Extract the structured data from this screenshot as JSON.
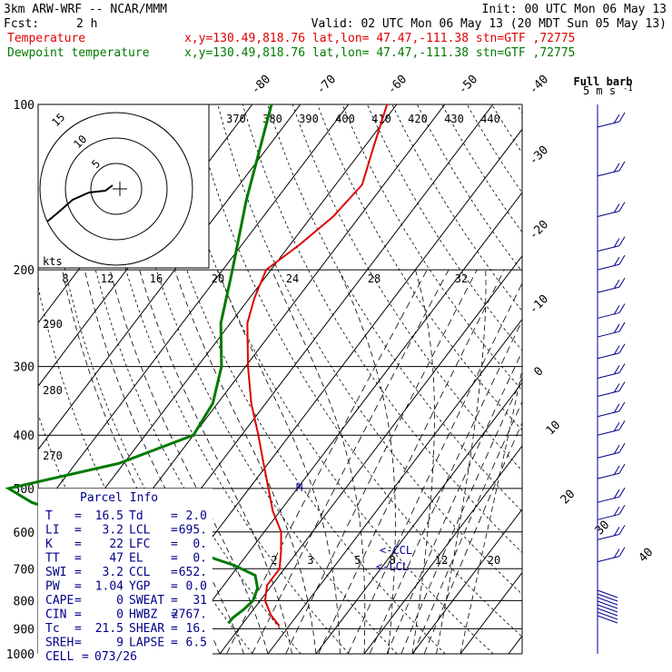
{
  "header": {
    "model": "3km ARW-WRF -- NCAR/MMM",
    "init": "Init: 00 UTC Mon 06 May 13",
    "fcst_label": "Fcst:",
    "fcst_value": "2 h",
    "valid": "Valid: 02 UTC Mon 06 May 13 (20 MDT Sun 05 May 13)",
    "temp_label": "Temperature",
    "temp_info": "x,y=130.49,818.76   lat,lon= 47.47,-111.38   stn=GTF ,72775",
    "dew_label": "Dewpoint temperature",
    "dew_info": "x,y=130.49,818.76   lat,lon= 47.47,-111.38   stn=GTF ,72775"
  },
  "colors": {
    "temperature": "#e00000",
    "dewpoint": "#007a00",
    "wind": "#00008b",
    "grid": "#000000"
  },
  "chart_data": {
    "type": "line",
    "pressure_levels": [
      "100",
      "200",
      "300",
      "400",
      "500",
      "600",
      "700",
      "800",
      "900",
      "1000"
    ],
    "p_ticks": [
      100,
      200,
      300,
      400,
      500,
      600,
      700,
      800,
      900,
      1000
    ],
    "isotherm_labels": [
      "-80",
      "-70",
      "-60",
      "-50",
      "-40",
      "-30",
      "-20",
      "-10",
      "0",
      "10",
      "20",
      "30",
      "40"
    ],
    "theta_labels": [
      "370",
      "380",
      "390",
      "400",
      "410",
      "420",
      "430",
      "440"
    ],
    "lower_theta_labels": [
      "290",
      "280",
      "270"
    ],
    "mixing_ratio_labels": [
      "8",
      "12",
      "16",
      "20",
      "24",
      "28",
      "32"
    ],
    "mixing_ratio_values": [
      8,
      12,
      16,
      20,
      24,
      28,
      32
    ],
    "low_mixing_labels": [
      "2",
      "3",
      "5",
      "8",
      "12",
      "20"
    ],
    "low_mixing_values": [
      2,
      3,
      5,
      8,
      12,
      20
    ],
    "kts_label": "kts",
    "hodo_rings": [
      "5",
      "10",
      "15"
    ],
    "full_barb_label": "Full barb",
    "full_barb_unit": "5 m s",
    "full_barb_exp": "-1",
    "ccl_label": "<-CCL",
    "lcl_label": "<-LCL",
    "m_label": "M",
    "temperature": [
      {
        "p": 890,
        "t": -2
      },
      {
        "p": 850,
        "t": -5.5
      },
      {
        "p": 800,
        "t": -9
      },
      {
        "p": 750,
        "t": -11
      },
      {
        "p": 700,
        "t": -11
      },
      {
        "p": 650,
        "t": -13.5
      },
      {
        "p": 600,
        "t": -16.5
      },
      {
        "p": 550,
        "t": -21.5
      },
      {
        "p": 500,
        "t": -26
      },
      {
        "p": 450,
        "t": -31
      },
      {
        "p": 400,
        "t": -36.5
      },
      {
        "p": 350,
        "t": -43
      },
      {
        "p": 300,
        "t": -49.5
      },
      {
        "p": 250,
        "t": -56.5
      },
      {
        "p": 225,
        "t": -59
      },
      {
        "p": 200,
        "t": -61
      },
      {
        "p": 180,
        "t": -58
      },
      {
        "p": 160,
        "t": -55.5
      },
      {
        "p": 140,
        "t": -54.5
      },
      {
        "p": 120,
        "t": -58
      },
      {
        "p": 100,
        "t": -62
      }
    ],
    "dewpoint": [
      {
        "p": 880,
        "t": -13
      },
      {
        "p": 860,
        "t": -13
      },
      {
        "p": 830,
        "t": -12
      },
      {
        "p": 800,
        "t": -11.5
      },
      {
        "p": 760,
        "t": -12.5
      },
      {
        "p": 720,
        "t": -15
      },
      {
        "p": 690,
        "t": -21
      },
      {
        "p": 650,
        "t": -32
      },
      {
        "p": 620,
        "t": -42
      },
      {
        "p": 590,
        "t": -53
      },
      {
        "p": 560,
        "t": -63
      },
      {
        "p": 530,
        "t": -73
      },
      {
        "p": 500,
        "t": -80
      },
      {
        "p": 450,
        "t": -61
      },
      {
        "p": 400,
        "t": -50
      },
      {
        "p": 350,
        "t": -51
      },
      {
        "p": 300,
        "t": -55
      },
      {
        "p": 250,
        "t": -62
      },
      {
        "p": 200,
        "t": -68
      },
      {
        "p": 150,
        "t": -76
      },
      {
        "p": 100,
        "t": -86
      }
    ],
    "wind_barbs_p": [
      110,
      135,
      160,
      185,
      200,
      220,
      245,
      265,
      290,
      315,
      340,
      370,
      400,
      440,
      480,
      530,
      570,
      620,
      680
    ],
    "hodograph": [
      [
        -52,
        -28
      ],
      [
        -44,
        -20
      ],
      [
        -34,
        -14
      ],
      [
        -22,
        -10
      ],
      [
        -12,
        -6
      ],
      [
        -6,
        -2
      ]
    ]
  },
  "parcel": {
    "title": "Parcel Info",
    "rows": [
      {
        "k1": "T",
        "v1": "16.5",
        "k2": "Td",
        "v2": "2.0"
      },
      {
        "k1": "LI",
        "v1": "3.2",
        "k2": "LCL",
        "v2": "695."
      },
      {
        "k1": "K",
        "v1": "22",
        "k2": "LFC",
        "v2": "0."
      },
      {
        "k1": "TT",
        "v1": "47",
        "k2": "EL",
        "v2": "0."
      },
      {
        "k1": "SWI",
        "v1": "3.2",
        "k2": "CCL",
        "v2": "652."
      },
      {
        "k1": "PW",
        "v1": "1.04",
        "k2": "YGP",
        "v2": "0.0"
      },
      {
        "k1": "CAPE",
        "v1": "0",
        "k2": "SWEAT",
        "v2": "31"
      },
      {
        "k1": "CIN",
        "v1": "0",
        "k2": "HWBZ",
        "v2": "2767."
      },
      {
        "k1": "Tc",
        "v1": "21.5",
        "k2": "SHEAR",
        "v2": "16."
      },
      {
        "k1": "SREH",
        "v1": "9",
        "k2": "LAPSE",
        "v2": "6.5"
      }
    ],
    "cell_label": "CELL",
    "cell_value": "073/26"
  }
}
